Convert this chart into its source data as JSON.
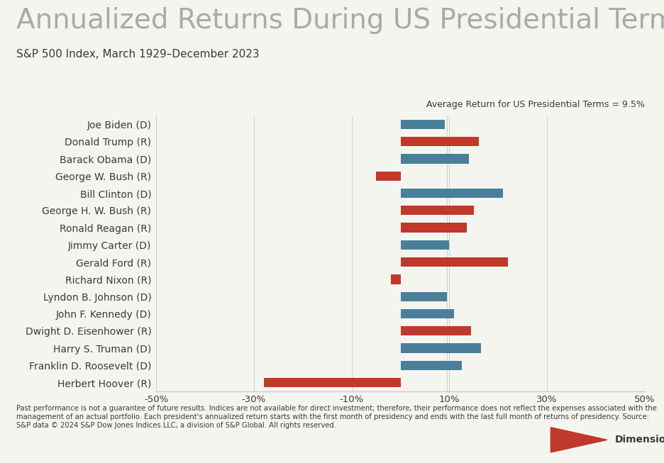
{
  "title": "Annualized Returns During US Presidential Terms",
  "subtitle": "S&P 500 Index, March 1929–December 2023",
  "avg_return_label": "Average Return for US Presidential Terms = 9.5%",
  "avg_return_value": 9.5,
  "footnote_bold": "Past performance is not a guarantee of future results.",
  "footnote_normal": " Indices are not available for direct investment; therefore, their performance does not reflect the expenses associated with the management of an actual portfolio. Each president's annualized return starts with the first month of presidency and ends with the last full month of returns of presidency. Source: S&P data © 2024 S&P Dow Jones Indices LLC, a division of S&P Global. All rights reserved.",
  "presidents": [
    "Joe Biden (D)",
    "Donald Trump (R)",
    "Barack Obama (D)",
    "George W. Bush (R)",
    "Bill Clinton (D)",
    "George H. W. Bush (R)",
    "Ronald Reagan (R)",
    "Jimmy Carter (D)",
    "Gerald Ford (R)",
    "Richard Nixon (R)",
    "Lyndon B. Johnson (D)",
    "John F. Kennedy (D)",
    "Dwight D. Eisenhower (R)",
    "Harry S. Truman (D)",
    "Franklin D. Roosevelt (D)",
    "Herbert Hoover (R)"
  ],
  "values": [
    9.0,
    16.0,
    14.0,
    -5.0,
    21.0,
    15.0,
    13.5,
    10.0,
    22.0,
    -2.0,
    9.5,
    11.0,
    14.5,
    16.5,
    12.5,
    -28.0
  ],
  "party": [
    "D",
    "R",
    "D",
    "R",
    "D",
    "R",
    "R",
    "D",
    "R",
    "R",
    "D",
    "D",
    "R",
    "D",
    "D",
    "R"
  ],
  "colors": {
    "D": "#4a7f9a",
    "R": "#c0392b"
  },
  "bar_height": 0.55,
  "xlim": [
    -50,
    50
  ],
  "xticks": [
    -50,
    -30,
    -10,
    10,
    30,
    50
  ],
  "xticklabels": [
    "-50%",
    "-30%",
    "-10%",
    "10%",
    "30%",
    "50%"
  ],
  "background_color": "#f5f5f0",
  "text_color": "#3a3a3a",
  "title_color": "#aaaaaa",
  "grid_color": "#cccccc",
  "title_fontsize": 28,
  "subtitle_fontsize": 11,
  "label_fontsize": 10,
  "tick_fontsize": 9.5,
  "footnote_fontsize": 7.2,
  "avg_fontsize": 9
}
